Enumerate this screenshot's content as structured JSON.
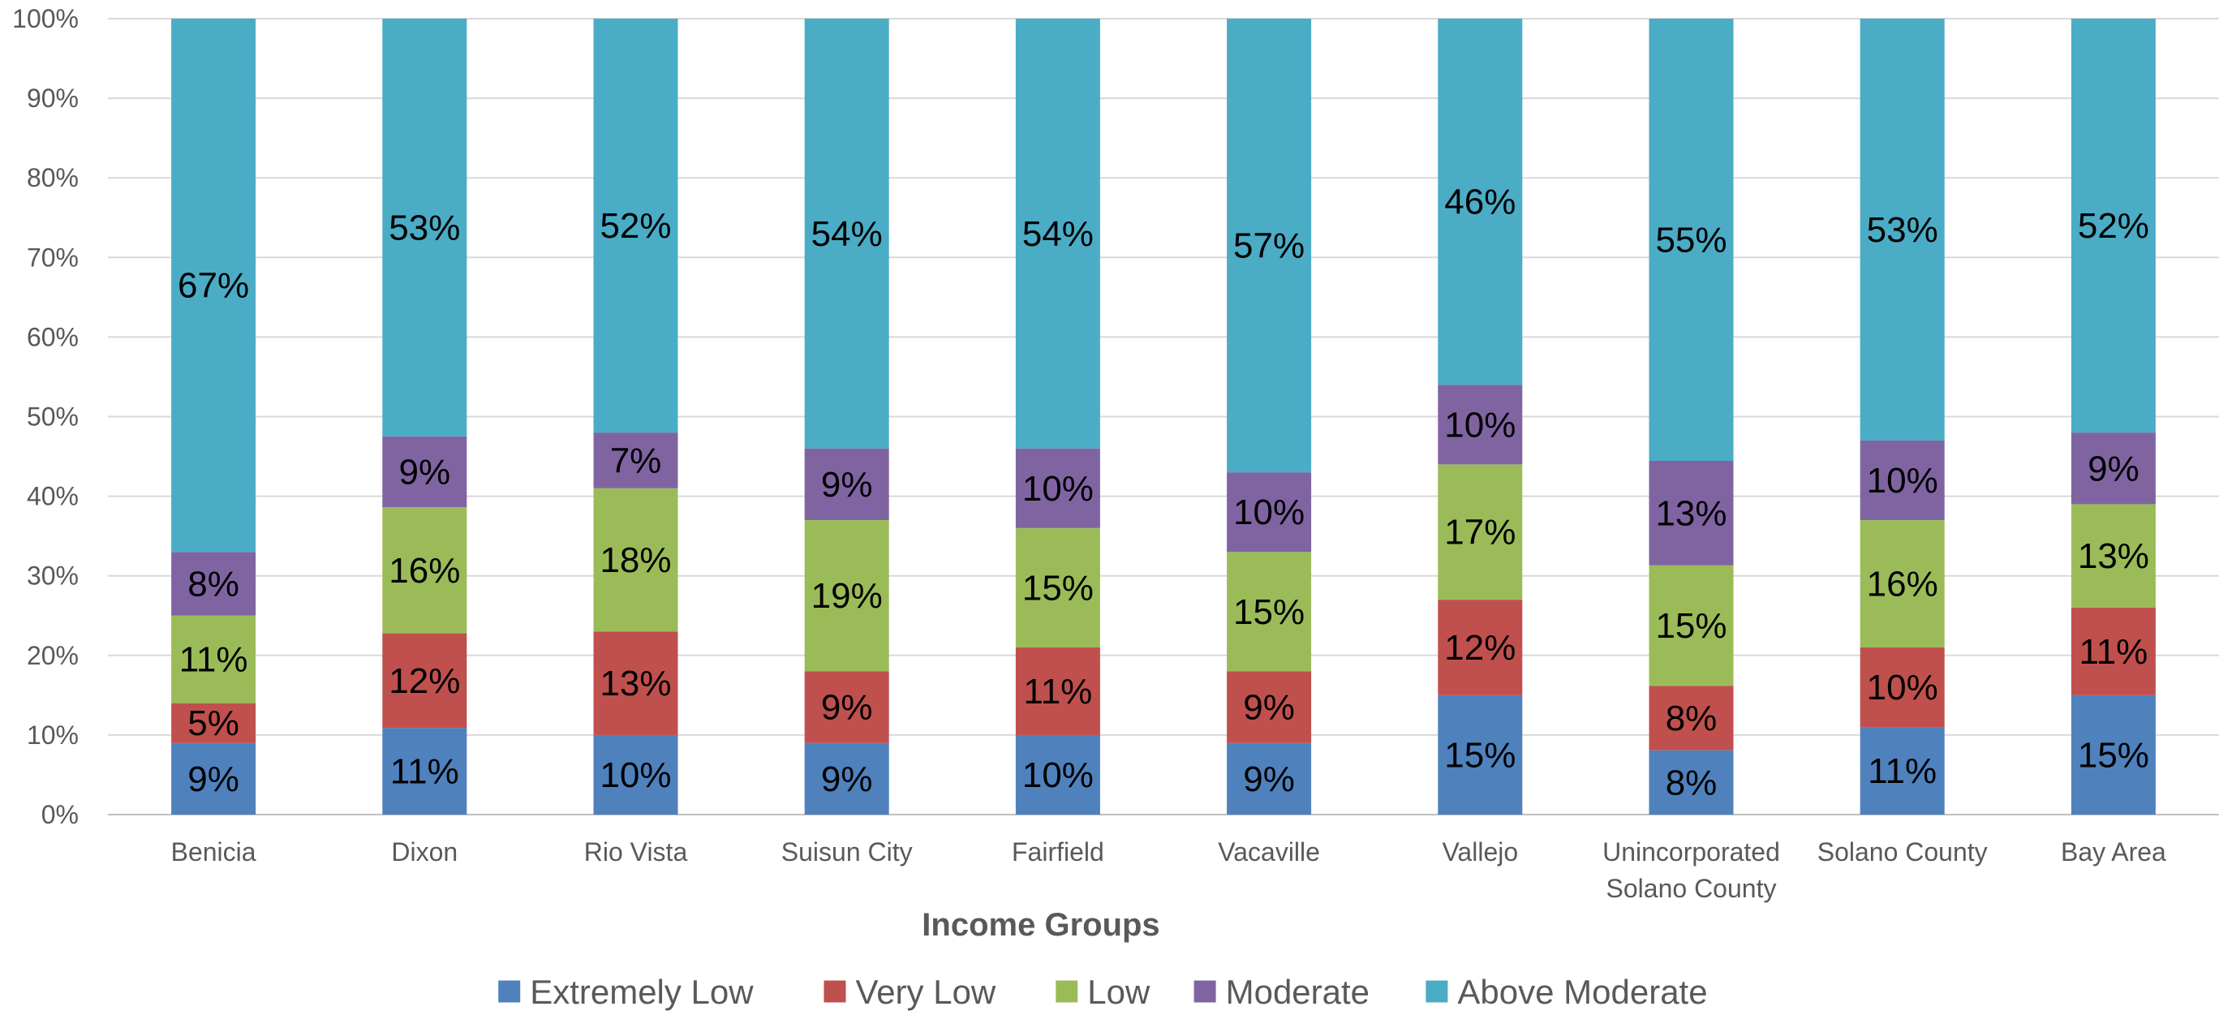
{
  "chart_data": {
    "type": "bar",
    "stacked": true,
    "percent_stacked": true,
    "xlabel": "Income Groups",
    "ylabel": "",
    "ylim": [
      0,
      100
    ],
    "y_ticks": [
      "0%",
      "10%",
      "20%",
      "30%",
      "40%",
      "50%",
      "60%",
      "70%",
      "80%",
      "90%",
      "100%"
    ],
    "grid": true,
    "legend_position": "bottom",
    "categories": [
      "Benicia",
      "Dixon",
      "Rio Vista",
      "Suisun City",
      "Fairfield",
      "Vacaville",
      "Vallejo",
      "Unincorporated Solano County",
      "Solano County",
      "Bay Area"
    ],
    "category_lines": [
      [
        "Benicia"
      ],
      [
        "Dixon"
      ],
      [
        "Rio Vista"
      ],
      [
        "Suisun City"
      ],
      [
        "Fairfield"
      ],
      [
        "Vacaville"
      ],
      [
        "Vallejo"
      ],
      [
        "Unincorporated",
        "Solano County"
      ],
      [
        "Solano County"
      ],
      [
        "Bay Area"
      ]
    ],
    "series": [
      {
        "name": "Extremely Low",
        "color": "#4f81bd",
        "values": [
          9,
          11,
          10,
          9,
          10,
          9,
          15,
          8,
          11,
          15
        ],
        "labels": [
          "9%",
          "11%",
          "10%",
          "9%",
          "10%",
          "9%",
          "15%",
          "8%",
          "11%",
          "15%"
        ]
      },
      {
        "name": "Very Low",
        "color": "#c0504d",
        "values": [
          5,
          12,
          13,
          9,
          11,
          9,
          12,
          8,
          10,
          11
        ],
        "labels": [
          "5%",
          "12%",
          "13%",
          "9%",
          "11%",
          "9%",
          "12%",
          "8%",
          "10%",
          "11%"
        ]
      },
      {
        "name": "Low",
        "color": "#9bbb59",
        "values": [
          11,
          16,
          18,
          19,
          15,
          15,
          17,
          15,
          16,
          13
        ],
        "labels": [
          "11%",
          "16%",
          "18%",
          "19%",
          "15%",
          "15%",
          "17%",
          "15%",
          "16%",
          "13%"
        ]
      },
      {
        "name": "Moderate",
        "color": "#8064a2",
        "values": [
          8,
          9,
          7,
          9,
          10,
          10,
          10,
          13,
          10,
          9
        ],
        "labels": [
          "8%",
          "9%",
          "7%",
          "9%",
          "10%",
          "10%",
          "10%",
          "13%",
          "10%",
          "9%"
        ]
      },
      {
        "name": "Above Moderate",
        "color": "#4bacc6",
        "values": [
          67,
          53,
          52,
          54,
          54,
          57,
          46,
          55,
          53,
          52
        ],
        "labels": [
          "67%",
          "53%",
          "52%",
          "54%",
          "54%",
          "57%",
          "46%",
          "55%",
          "53%",
          "52%"
        ]
      }
    ]
  }
}
